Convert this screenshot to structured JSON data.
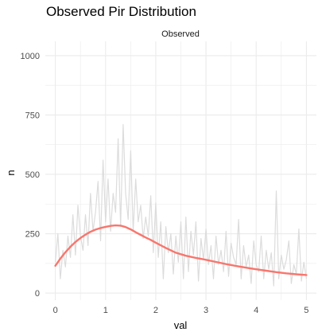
{
  "chart_data": {
    "type": "line",
    "title": "Observed Pir Distribution",
    "facet_label": "Observed",
    "xlabel": "val",
    "ylabel": "n",
    "xlim": [
      -0.2,
      5.2
    ],
    "ylim": [
      -30,
      1060
    ],
    "x_ticks": [
      0,
      1,
      2,
      3,
      4,
      5
    ],
    "y_ticks": [
      0,
      250,
      500,
      750,
      1000
    ],
    "grid": true,
    "legend": "none",
    "colors": {
      "smooth": "#F8766D",
      "raw": "#DCDCDC",
      "grid": "#EBEBEB"
    },
    "series": [
      {
        "kind": "raw",
        "x": [
          0,
          0.05,
          0.1,
          0.15,
          0.2,
          0.25,
          0.3,
          0.35,
          0.4,
          0.45,
          0.5,
          0.55,
          0.6,
          0.65,
          0.7,
          0.75,
          0.8,
          0.85,
          0.9,
          0.95,
          1.0,
          1.05,
          1.1,
          1.15,
          1.2,
          1.25,
          1.3,
          1.35,
          1.4,
          1.45,
          1.5,
          1.55,
          1.6,
          1.65,
          1.7,
          1.75,
          1.8,
          1.85,
          1.9,
          1.95,
          2.0,
          2.05,
          2.1,
          2.15,
          2.2,
          2.25,
          2.3,
          2.35,
          2.4,
          2.45,
          2.5,
          2.55,
          2.6,
          2.65,
          2.7,
          2.75,
          2.8,
          2.85,
          2.9,
          2.95,
          3.0,
          3.05,
          3.1,
          3.15,
          3.2,
          3.25,
          3.3,
          3.35,
          3.4,
          3.45,
          3.5,
          3.55,
          3.6,
          3.65,
          3.7,
          3.75,
          3.8,
          3.85,
          3.9,
          3.95,
          4.0,
          4.05,
          4.1,
          4.15,
          4.2,
          4.25,
          4.3,
          4.35,
          4.4,
          4.45,
          4.5,
          4.55,
          4.6,
          4.65,
          4.7,
          4.75,
          4.8,
          4.85,
          4.9,
          4.95,
          5.0
        ],
        "y": [
          130,
          250,
          60,
          180,
          110,
          240,
          150,
          330,
          160,
          370,
          240,
          180,
          330,
          200,
          420,
          260,
          340,
          470,
          220,
          560,
          300,
          480,
          260,
          420,
          340,
          650,
          280,
          710,
          420,
          310,
          600,
          260,
          480,
          300,
          370,
          230,
          320,
          240,
          410,
          170,
          380,
          150,
          300,
          60,
          280,
          170,
          250,
          80,
          240,
          130,
          300,
          60,
          320,
          90,
          260,
          160,
          300,
          50,
          230,
          140,
          270,
          120,
          200,
          60,
          240,
          120,
          180,
          90,
          260,
          70,
          210,
          150,
          120,
          310,
          60,
          200,
          110,
          160,
          40,
          220,
          120,
          90,
          240,
          60,
          180,
          100,
          170,
          30,
          430,
          60,
          160,
          100,
          140,
          220,
          40,
          120,
          80,
          270,
          50,
          130,
          60
        ]
      },
      {
        "kind": "smooth",
        "x": [
          0,
          0.1,
          0.2,
          0.3,
          0.4,
          0.5,
          0.6,
          0.7,
          0.8,
          0.9,
          1.0,
          1.1,
          1.2,
          1.3,
          1.4,
          1.5,
          1.6,
          1.7,
          1.8,
          1.9,
          2.0,
          2.2,
          2.4,
          2.6,
          2.8,
          3.0,
          3.2,
          3.4,
          3.6,
          3.8,
          4.0,
          4.2,
          4.4,
          4.6,
          4.8,
          5.0
        ],
        "y": [
          115,
          145,
          172,
          195,
          215,
          232,
          246,
          258,
          267,
          274,
          279,
          283,
          285,
          284,
          278,
          268,
          256,
          245,
          234,
          224,
          212,
          190,
          170,
          157,
          148,
          140,
          131,
          122,
          114,
          107,
          100,
          94,
          88,
          83,
          79,
          76
        ]
      }
    ]
  }
}
